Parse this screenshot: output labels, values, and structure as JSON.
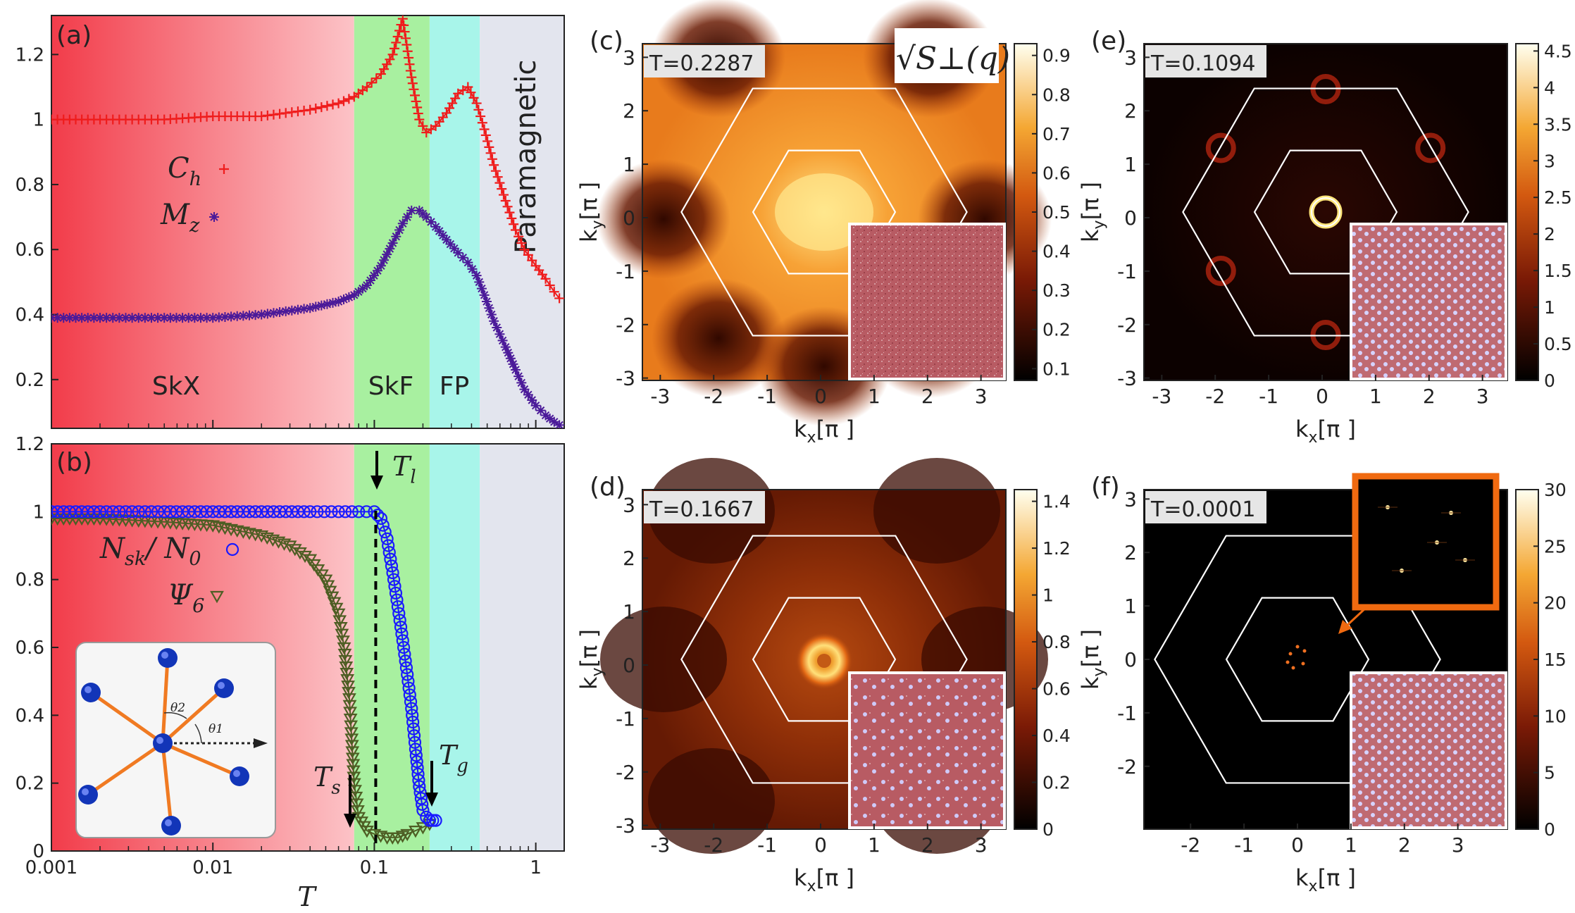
{
  "chart_data": [
    {
      "panel": "(a)",
      "type": "line",
      "x_scale": "log",
      "xlim": [
        0.001,
        1.5
      ],
      "ylim": [
        0.05,
        1.32
      ],
      "yticks": [
        "0.2",
        "0.4",
        "0.6",
        "0.8",
        "1",
        "1.2"
      ],
      "phase_labels": [
        "SkX",
        "SkF",
        "FP",
        "Paramagnetic"
      ],
      "phase_boundaries": [
        0.075,
        0.22,
        0.45
      ],
      "phase_colors": [
        "#f23c4a",
        "#a8f0a0",
        "#a8f5ea",
        "#e3e5ee"
      ],
      "series": [
        {
          "name": "C_h",
          "legend": "C",
          "legend_sub": "h",
          "marker": "+",
          "color": "#ef1c1c",
          "x": [
            0.001,
            0.002,
            0.005,
            0.01,
            0.02,
            0.04,
            0.06,
            0.075,
            0.09,
            0.11,
            0.13,
            0.15,
            0.17,
            0.19,
            0.21,
            0.24,
            0.28,
            0.33,
            0.38,
            0.43,
            0.48,
            0.55,
            0.65,
            0.75,
            0.85,
            1.0,
            1.15,
            1.3,
            1.4
          ],
          "y": [
            1.0,
            1.0,
            1.0,
            1.01,
            1.01,
            1.03,
            1.05,
            1.07,
            1.1,
            1.14,
            1.2,
            1.31,
            1.13,
            1.0,
            0.96,
            0.98,
            1.02,
            1.08,
            1.1,
            1.05,
            0.97,
            0.86,
            0.75,
            0.66,
            0.6,
            0.55,
            0.51,
            0.47,
            0.45
          ]
        },
        {
          "name": "M_z",
          "legend": "M",
          "legend_sub": "z",
          "marker": "*",
          "color": "#4b1a99",
          "x": [
            0.001,
            0.002,
            0.005,
            0.01,
            0.02,
            0.04,
            0.06,
            0.075,
            0.09,
            0.11,
            0.13,
            0.15,
            0.17,
            0.19,
            0.21,
            0.24,
            0.28,
            0.33,
            0.38,
            0.43,
            0.48,
            0.55,
            0.65,
            0.75,
            0.85,
            1.0,
            1.15,
            1.3,
            1.4
          ],
          "y": [
            0.39,
            0.39,
            0.39,
            0.39,
            0.4,
            0.42,
            0.44,
            0.46,
            0.49,
            0.55,
            0.62,
            0.68,
            0.72,
            0.72,
            0.7,
            0.67,
            0.63,
            0.59,
            0.56,
            0.52,
            0.46,
            0.38,
            0.3,
            0.23,
            0.17,
            0.12,
            0.09,
            0.07,
            0.06
          ]
        }
      ]
    },
    {
      "panel": "(b)",
      "type": "line",
      "x_scale": "log",
      "xlim": [
        0.001,
        1.5
      ],
      "ylim": [
        0,
        1.2
      ],
      "xticks": [
        "0.001",
        "0.01",
        "0.1",
        "1"
      ],
      "yticks": [
        "0",
        "0.2",
        "0.4",
        "0.6",
        "0.8",
        "1",
        "1.2"
      ],
      "xlabel": "T",
      "annotations": [
        {
          "sym": "T",
          "sub": "l",
          "x": 0.1,
          "y": 1.05
        },
        {
          "sym": "T",
          "sub": "g",
          "x": 0.24,
          "y": 0.28
        },
        {
          "sym": "T",
          "sub": "s",
          "x": 0.075,
          "y": 0.18
        }
      ],
      "series": [
        {
          "name": "N_sk/N_0",
          "legend": "N",
          "legend_rest": "sk",
          "legend_den": "N",
          "legend_den_sub": "0",
          "marker": "o",
          "color": "#1a1aff",
          "x": [
            0.001,
            0.002,
            0.005,
            0.01,
            0.02,
            0.04,
            0.06,
            0.08,
            0.1,
            0.11,
            0.12,
            0.13,
            0.14,
            0.15,
            0.16,
            0.17,
            0.18,
            0.19,
            0.2,
            0.21,
            0.22,
            0.23,
            0.24
          ],
          "y": [
            1.0,
            1.0,
            1.0,
            1.0,
            1.0,
            1.0,
            1.0,
            1.0,
            1.0,
            0.98,
            0.92,
            0.82,
            0.72,
            0.62,
            0.52,
            0.42,
            0.3,
            0.19,
            0.12,
            0.1,
            0.09,
            0.09,
            0.09
          ]
        },
        {
          "name": "Psi_6",
          "legend": "Ψ",
          "legend_sub": "6",
          "marker": "v",
          "color": "#4e5e24",
          "x": [
            0.001,
            0.002,
            0.005,
            0.01,
            0.02,
            0.03,
            0.04,
            0.05,
            0.06,
            0.065,
            0.07,
            0.072,
            0.075,
            0.08,
            0.09,
            0.1,
            0.12,
            0.14,
            0.16,
            0.18,
            0.2,
            0.22
          ],
          "y": [
            0.98,
            0.98,
            0.97,
            0.96,
            0.93,
            0.9,
            0.86,
            0.8,
            0.7,
            0.6,
            0.45,
            0.35,
            0.2,
            0.1,
            0.06,
            0.05,
            0.04,
            0.04,
            0.05,
            0.06,
            0.07,
            0.08
          ]
        }
      ]
    },
    {
      "panel": "(c)",
      "type": "heatmap",
      "T_label": "T=0.2287",
      "title": "√S⊥(q)",
      "colorbar_ticks": [
        "0.1",
        "0.2",
        "0.3",
        "0.4",
        "0.5",
        "0.6",
        "0.7",
        "0.8",
        "0.9"
      ],
      "xticks": [
        "-3",
        "-2",
        "-1",
        "0",
        "1",
        "2",
        "3"
      ],
      "yticks": [
        "-3",
        "-2",
        "-1",
        "0",
        "1",
        "2",
        "3"
      ],
      "xlabel": "k",
      "xlabel_sub": "x",
      "ylabel": "k",
      "ylabel_sub": "y",
      "unit": "[π ]"
    },
    {
      "panel": "(d)",
      "type": "heatmap",
      "T_label": "T=0.1667",
      "colorbar_ticks": [
        "0",
        "0.2",
        "0.4",
        "0.6",
        "0.8",
        "1",
        "1.2",
        "1.4"
      ],
      "xticks": [
        "-3",
        "-2",
        "-1",
        "0",
        "1",
        "2",
        "3"
      ],
      "yticks": [
        "-3",
        "-2",
        "-1",
        "0",
        "1",
        "2",
        "3"
      ],
      "xlabel": "k",
      "xlabel_sub": "x",
      "ylabel": "k",
      "ylabel_sub": "y",
      "unit": "[π ]"
    },
    {
      "panel": "(e)",
      "type": "heatmap",
      "T_label": "T=0.1094",
      "colorbar_ticks": [
        "0",
        "0.5",
        "1",
        "1.5",
        "2",
        "2.5",
        "3",
        "3.5",
        "4",
        "4.5"
      ],
      "xticks": [
        "-3",
        "-2",
        "-1",
        "0",
        "1",
        "2",
        "3"
      ],
      "yticks": [
        "-3",
        "-2",
        "-1",
        "0",
        "1",
        "2",
        "3"
      ],
      "xlabel": "k",
      "xlabel_sub": "x",
      "ylabel": "k",
      "ylabel_sub": "y",
      "unit": "[π ]"
    },
    {
      "panel": "(f)",
      "type": "heatmap",
      "T_label": "T=0.0001",
      "colorbar_ticks": [
        "0",
        "5",
        "10",
        "15",
        "20",
        "25",
        "30"
      ],
      "xticks": [
        "-2",
        "-1",
        "0",
        "1",
        "2",
        "3"
      ],
      "yticks": [
        "-2",
        "-1",
        "0",
        "1",
        "2",
        "3"
      ],
      "xlabel": "k",
      "xlabel_sub": "x",
      "ylabel": "k",
      "ylabel_sub": "y",
      "unit": "[π ]"
    }
  ],
  "inset_b": {
    "theta1": "θ1",
    "theta2": "θ2"
  }
}
